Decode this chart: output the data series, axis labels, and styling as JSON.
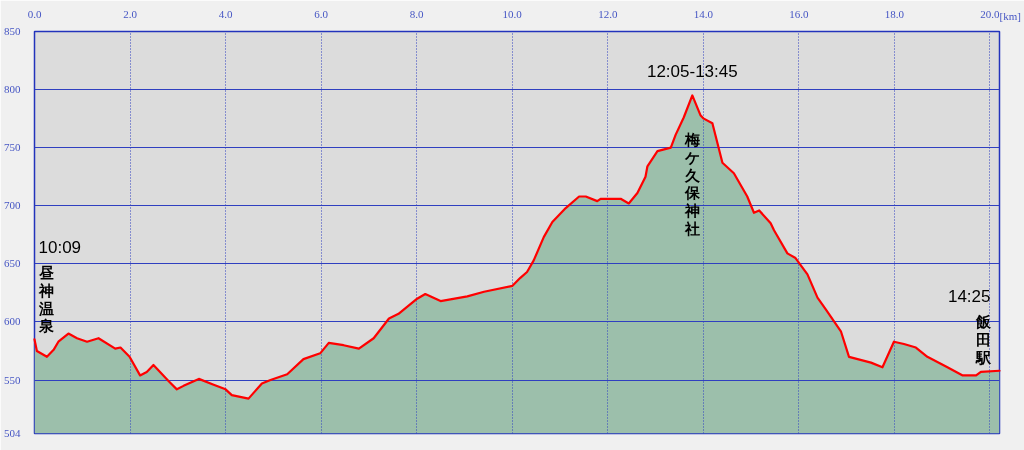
{
  "chart_data": {
    "type": "area",
    "xlabel": "[km]",
    "xlim": [
      0,
      20.2
    ],
    "ylim": [
      504,
      850
    ],
    "xticks": [
      {
        "value": 0,
        "label": "0.0"
      },
      {
        "value": 2,
        "label": "2.0"
      },
      {
        "value": 4,
        "label": "4.0"
      },
      {
        "value": 6,
        "label": "6.0"
      },
      {
        "value": 8,
        "label": "8.0"
      },
      {
        "value": 10,
        "label": "10.0"
      },
      {
        "value": 12,
        "label": "12.0"
      },
      {
        "value": 14,
        "label": "14.0"
      },
      {
        "value": 16,
        "label": "16.0"
      },
      {
        "value": 18,
        "label": "18.0"
      },
      {
        "value": 20,
        "label": "20.0"
      }
    ],
    "yticks": [
      504,
      550,
      600,
      650,
      700,
      750,
      800,
      850
    ],
    "grid": true,
    "x": [
      0,
      0.05,
      0.26,
      0.4,
      0.5,
      0.71,
      0.89,
      1.1,
      1.34,
      1.69,
      1.8,
      1.99,
      2.21,
      2.35,
      2.49,
      2.81,
      2.98,
      3.12,
      3.44,
      3.75,
      4.0,
      4.13,
      4.48,
      4.76,
      4.94,
      5.29,
      5.63,
      5.98,
      6.16,
      6.47,
      6.79,
      7.1,
      7.42,
      7.62,
      8.01,
      8.18,
      8.5,
      9.06,
      9.41,
      10.0,
      10.17,
      10.31,
      10.45,
      10.66,
      10.84,
      11.12,
      11.4,
      11.54,
      11.78,
      11.85,
      12.27,
      12.44,
      12.62,
      12.79,
      12.83,
      13.04,
      13.32,
      13.42,
      13.59,
      13.77,
      13.94,
      14.01,
      14.19,
      14.4,
      14.64,
      14.92,
      15.06,
      15.17,
      15.41,
      15.48,
      15.76,
      15.93,
      16.18,
      16.39,
      16.56,
      16.88,
      17.05,
      17.51,
      17.75,
      17.99,
      18.2,
      18.45,
      18.69,
      19.11,
      19.43,
      19.71,
      19.81,
      20.2
    ],
    "series": [
      {
        "color": "#9cbfab",
        "values": [
          585,
          575,
          570,
          576,
          583,
          590,
          586,
          583,
          586,
          577,
          578,
          570,
          554,
          557,
          563,
          549,
          542,
          545,
          551,
          546,
          542,
          537,
          534,
          547,
          550,
          555,
          568,
          573,
          582,
          580,
          577,
          586,
          603,
          607,
          620,
          624,
          618,
          622,
          626,
          631,
          638,
          643,
          653,
          673,
          686,
          698,
          708,
          708,
          704,
          706,
          706,
          702,
          711,
          725,
          734,
          747,
          750,
          761,
          776,
          795,
          778,
          775,
          771,
          737,
          728,
          708,
          694,
          696,
          685,
          679,
          659,
          655,
          641,
          621,
          611,
          592,
          570,
          565,
          561,
          583,
          581,
          578,
          570,
          561,
          554,
          554,
          557,
          558
        ]
      }
    ],
    "annotations": [
      "10:09",
      {
        "text": "昼神温泉",
        "x": 0,
        "y": 585
      },
      {
        "text": "12:05-13:45",
        "x": 13.77,
        "y": 795
      },
      {
        "text": "梅ケ久保神社",
        "x": 13.77,
        "y": 795
      },
      "14:25",
      {
        "text": "飯田駅",
        "x": 20.2,
        "y": 558
      }
    ]
  }
}
